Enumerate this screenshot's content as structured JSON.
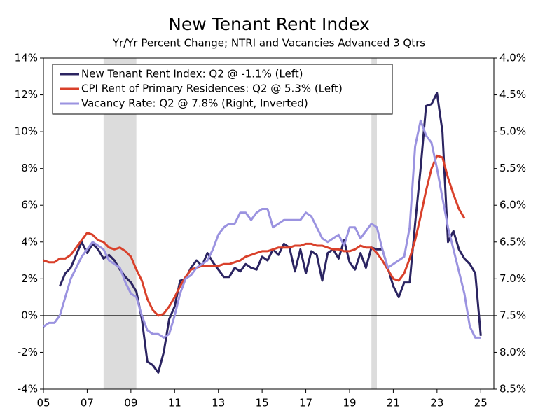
{
  "chart_data": {
    "type": "line",
    "title": "New Tenant Rent Index",
    "subtitle": "Yr/Yr Percent Change; NTRI and Vacancies Advanced 3 Qtrs",
    "x": [
      2005,
      2005.25,
      2005.5,
      2005.75,
      2006,
      2006.25,
      2006.5,
      2006.75,
      2007,
      2007.25,
      2007.5,
      2007.75,
      2008,
      2008.25,
      2008.5,
      2008.75,
      2009,
      2009.25,
      2009.5,
      2009.75,
      2010,
      2010.25,
      2010.5,
      2010.75,
      2011,
      2011.25,
      2011.5,
      2011.75,
      2012,
      2012.25,
      2012.5,
      2012.75,
      2013,
      2013.25,
      2013.5,
      2013.75,
      2014,
      2014.25,
      2014.5,
      2014.75,
      2015,
      2015.25,
      2015.5,
      2015.75,
      2016,
      2016.25,
      2016.5,
      2016.75,
      2017,
      2017.25,
      2017.5,
      2017.75,
      2018,
      2018.25,
      2018.5,
      2018.75,
      2019,
      2019.25,
      2019.5,
      2019.75,
      2020,
      2020.25,
      2020.5,
      2020.75,
      2021,
      2021.25,
      2021.5,
      2021.75,
      2022,
      2022.25,
      2022.5,
      2022.75,
      2023,
      2023.25,
      2023.5,
      2023.75,
      2024,
      2024.25,
      2024.5,
      2024.75,
      2025,
      2025.25
    ],
    "series": [
      {
        "name": "New Tenant Rent Index: Q2 @ -1.1% (Left)",
        "color": "#2b2461",
        "axis": "y",
        "values": [
          null,
          null,
          null,
          1.6,
          2.3,
          2.6,
          3.3,
          4.0,
          3.4,
          3.9,
          3.6,
          3.1,
          3.3,
          3.0,
          2.5,
          2.1,
          1.8,
          1.3,
          -0.2,
          -2.5,
          -2.7,
          -3.1,
          -2.0,
          -0.2,
          0.5,
          1.9,
          2.0,
          2.6,
          3.0,
          2.7,
          3.4,
          2.9,
          2.5,
          2.1,
          2.1,
          2.6,
          2.4,
          2.8,
          2.6,
          2.5,
          3.2,
          3.0,
          3.6,
          3.3,
          3.9,
          3.7,
          2.4,
          3.6,
          2.3,
          3.5,
          3.3,
          1.9,
          3.4,
          3.6,
          3.1,
          4.1,
          2.9,
          2.5,
          3.4,
          2.6,
          3.7,
          3.6,
          3.6,
          2.6,
          1.6,
          1.0,
          1.8,
          1.8,
          5.0,
          8.0,
          11.4,
          11.5,
          12.1,
          10.0,
          4.0,
          4.6,
          3.6,
          3.1,
          2.8,
          2.3,
          -1.1,
          null
        ]
      },
      {
        "name": "CPI Rent of Primary Residences: Q2 @ 5.3% (Left)",
        "color": "#d9402a",
        "axis": "y",
        "values": [
          3.0,
          2.9,
          2.9,
          3.1,
          3.1,
          3.3,
          3.7,
          4.1,
          4.5,
          4.4,
          4.1,
          4.0,
          3.7,
          3.6,
          3.7,
          3.5,
          3.2,
          2.5,
          1.9,
          0.9,
          0.3,
          0.0,
          0.1,
          0.5,
          1.0,
          1.6,
          2.1,
          2.5,
          2.6,
          2.7,
          2.7,
          2.7,
          2.7,
          2.8,
          2.8,
          2.9,
          3.0,
          3.2,
          3.3,
          3.4,
          3.5,
          3.5,
          3.6,
          3.7,
          3.7,
          3.7,
          3.8,
          3.8,
          3.9,
          3.9,
          3.8,
          3.8,
          3.7,
          3.6,
          3.6,
          3.5,
          3.5,
          3.6,
          3.8,
          3.7,
          3.7,
          3.4,
          3.0,
          2.5,
          2.0,
          1.9,
          2.3,
          3.1,
          4.1,
          5.4,
          6.8,
          8.0,
          8.7,
          8.6,
          7.5,
          6.6,
          5.8,
          5.3,
          null,
          null,
          null,
          null
        ]
      },
      {
        "name": "Vacancy Rate: Q2 @ 7.8% (Right, Inverted)",
        "color": "#9b93e0",
        "axis": "y2",
        "values": [
          7.65,
          7.6,
          7.6,
          7.5,
          7.25,
          7.0,
          6.85,
          6.7,
          6.6,
          6.5,
          6.55,
          6.6,
          6.75,
          6.8,
          6.85,
          7.05,
          7.2,
          7.25,
          7.5,
          7.7,
          7.75,
          7.75,
          7.8,
          7.75,
          7.5,
          7.2,
          7.0,
          6.95,
          6.85,
          6.8,
          6.75,
          6.6,
          6.4,
          6.3,
          6.25,
          6.25,
          6.1,
          6.1,
          6.2,
          6.1,
          6.05,
          6.05,
          6.3,
          6.25,
          6.2,
          6.2,
          6.2,
          6.2,
          6.1,
          6.15,
          6.3,
          6.45,
          6.5,
          6.45,
          6.4,
          6.55,
          6.3,
          6.3,
          6.45,
          6.35,
          6.25,
          6.3,
          6.6,
          6.85,
          6.8,
          6.75,
          6.7,
          6.3,
          5.2,
          4.85,
          5.05,
          5.15,
          5.5,
          5.9,
          6.3,
          6.6,
          6.9,
          7.2,
          7.65,
          7.8,
          7.8,
          null
        ]
      }
    ],
    "xlim": [
      2005,
      2025.6
    ],
    "xticks": [
      {
        "value": 2005,
        "label": "05"
      },
      {
        "value": 2007,
        "label": "07"
      },
      {
        "value": 2009,
        "label": "09"
      },
      {
        "value": 2011,
        "label": "11"
      },
      {
        "value": 2013,
        "label": "13"
      },
      {
        "value": 2015,
        "label": "15"
      },
      {
        "value": 2017,
        "label": "17"
      },
      {
        "value": 2019,
        "label": "19"
      },
      {
        "value": 2021,
        "label": "21"
      },
      {
        "value": 2023,
        "label": "23"
      },
      {
        "value": 2025,
        "label": "25"
      }
    ],
    "ylim": [
      -4,
      14
    ],
    "yticks": [
      {
        "value": -4,
        "label": "-4%"
      },
      {
        "value": -2,
        "label": "-2%"
      },
      {
        "value": 0,
        "label": "0%"
      },
      {
        "value": 2,
        "label": "2%"
      },
      {
        "value": 4,
        "label": "4%"
      },
      {
        "value": 6,
        "label": "6%"
      },
      {
        "value": 8,
        "label": "8%"
      },
      {
        "value": 10,
        "label": "10%"
      },
      {
        "value": 12,
        "label": "12%"
      },
      {
        "value": 14,
        "label": "14%"
      }
    ],
    "y2lim": [
      8.5,
      4.0
    ],
    "y2ticks": [
      {
        "value": 8.5,
        "label": "8.5%"
      },
      {
        "value": 8.0,
        "label": "8.0%"
      },
      {
        "value": 7.5,
        "label": "7.5%"
      },
      {
        "value": 7.0,
        "label": "7.0%"
      },
      {
        "value": 6.5,
        "label": "6.5%"
      },
      {
        "value": 6.0,
        "label": "6.0%"
      },
      {
        "value": 5.5,
        "label": "5.5%"
      },
      {
        "value": 5.0,
        "label": "5.0%"
      },
      {
        "value": 4.5,
        "label": "4.5%"
      },
      {
        "value": 4.0,
        "label": "4.0%"
      }
    ],
    "shaded_regions": [
      [
        2007.75,
        2009.25
      ],
      [
        2020.0,
        2020.25
      ]
    ],
    "legend": "top-left"
  }
}
